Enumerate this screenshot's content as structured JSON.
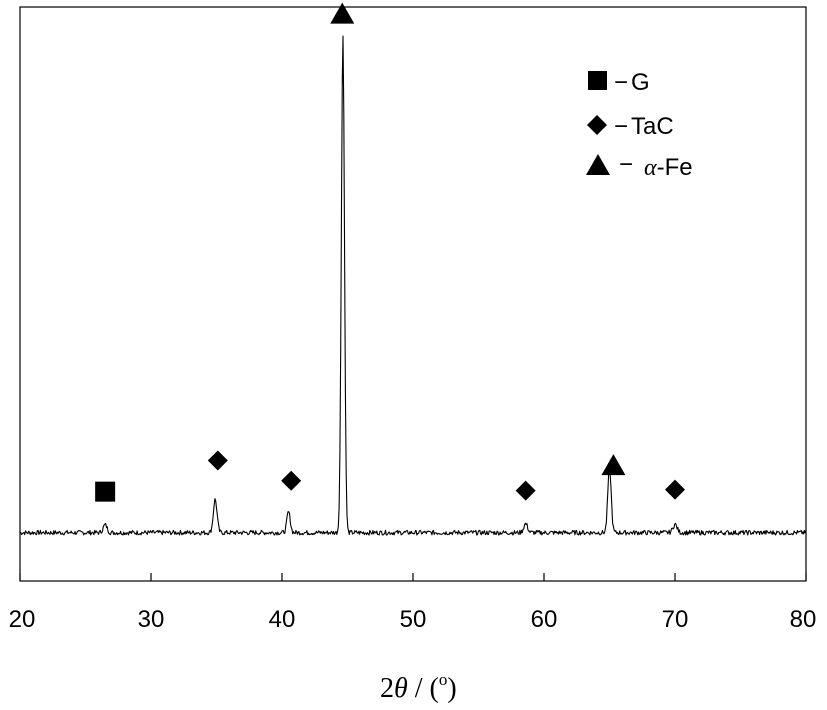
{
  "chart_data": {
    "type": "line",
    "title": "",
    "xlabel": "2θ / (°)",
    "xlabel_parts": {
      "prefix": "2",
      "theta": "θ",
      "suffix": " / (",
      "degree": "o",
      "close": ")"
    },
    "ylabel": "",
    "xlim": [
      20,
      80
    ],
    "ylim": [
      0,
      100
    ],
    "x_ticks": [
      20,
      30,
      40,
      50,
      60,
      70,
      80
    ],
    "grid": false,
    "series_color": "#000000",
    "baseline": 4.5,
    "noise_amplitude": 0.45,
    "peaks": [
      {
        "x": 26.5,
        "height": 1.5,
        "width": 0.15
      },
      {
        "x": 34.9,
        "height": 6.4,
        "width": 0.14
      },
      {
        "x": 40.5,
        "height": 4.0,
        "width": 0.13
      },
      {
        "x": 44.65,
        "height": 96.0,
        "width": 0.12
      },
      {
        "x": 58.6,
        "height": 1.7,
        "width": 0.15
      },
      {
        "x": 65.0,
        "height": 12.4,
        "width": 0.13
      },
      {
        "x": 70.0,
        "height": 1.6,
        "width": 0.16
      }
    ],
    "markers": [
      {
        "x": 26.5,
        "y": 12.4,
        "shape": "square",
        "phase": "G"
      },
      {
        "x": 35.1,
        "y": 18.4,
        "shape": "diamond",
        "phase": "TaC"
      },
      {
        "x": 40.7,
        "y": 14.5,
        "shape": "diamond",
        "phase": "TaC"
      },
      {
        "x": 44.6,
        "y": 104.5,
        "shape": "triangle",
        "phase": "α-Fe"
      },
      {
        "x": 58.6,
        "y": 12.6,
        "shape": "diamond",
        "phase": "TaC"
      },
      {
        "x": 65.3,
        "y": 17.5,
        "shape": "triangle",
        "phase": "α-Fe"
      },
      {
        "x": 70.0,
        "y": 12.8,
        "shape": "diamond",
        "phase": "TaC"
      }
    ],
    "legend": {
      "placement": "top-right",
      "entries": [
        {
          "shape": "square",
          "dash": "−",
          "label": "G"
        },
        {
          "shape": "diamond",
          "dash": "−",
          "label": "TaC"
        },
        {
          "shape": "triangle",
          "dash": "−",
          "label_italic": "α",
          "label_rest": "-Fe"
        }
      ]
    }
  }
}
